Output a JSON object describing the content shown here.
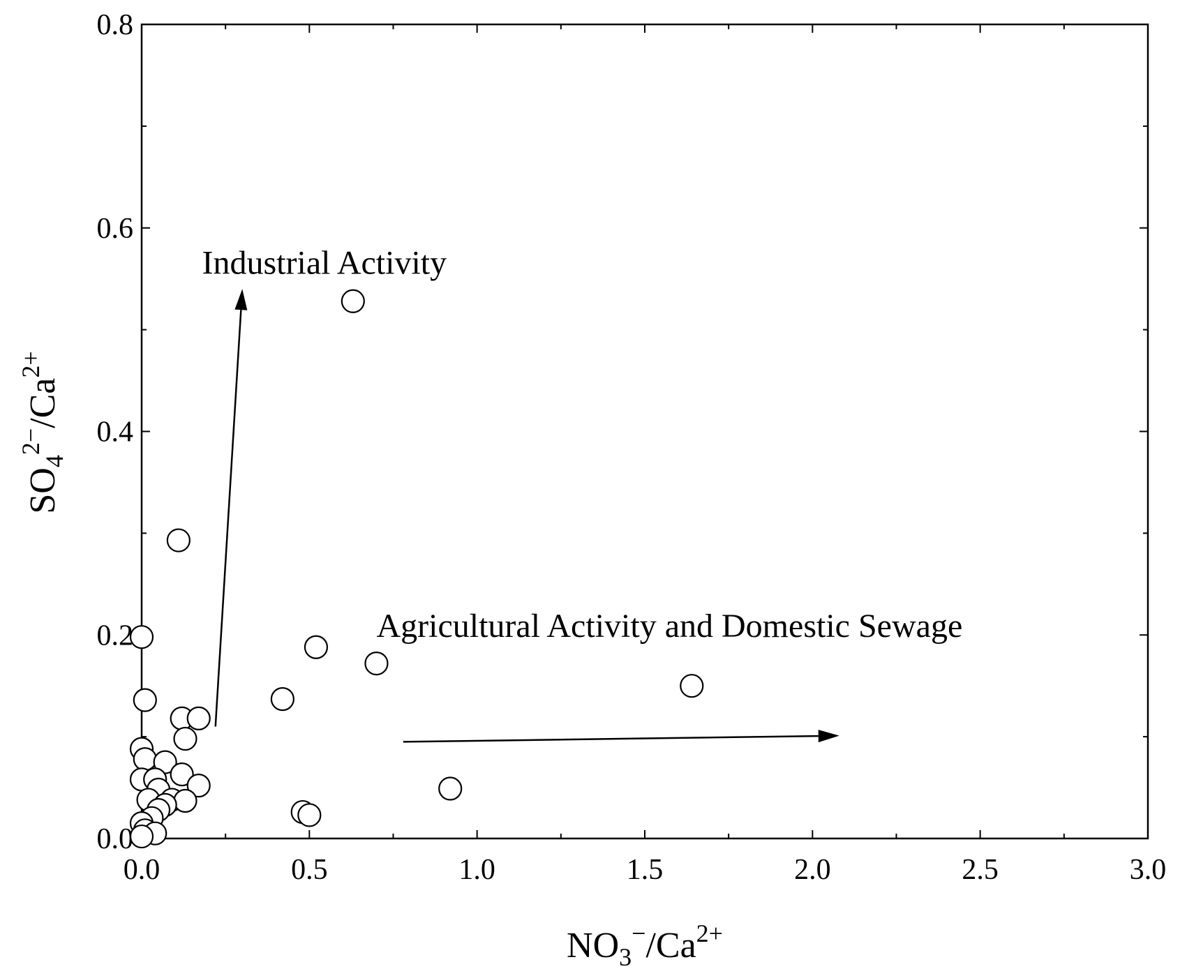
{
  "chart_data": {
    "type": "scatter",
    "title": "",
    "xlabel": {
      "base": "NO",
      "sub": "3",
      "sup": "−",
      "tail": "/Ca",
      "tail_sup": "2+"
    },
    "ylabel": {
      "base": "SO",
      "sub": "4",
      "sup": "2−",
      "tail": "/Ca",
      "tail_sup": "2+"
    },
    "xlim": [
      0,
      3
    ],
    "ylim": [
      0,
      0.8
    ],
    "xticks": [
      "0.0",
      "0.5",
      "1.0",
      "1.5",
      "2.0",
      "2.5",
      "3.0"
    ],
    "yticks": [
      "0.0",
      "0.2",
      "0.4",
      "0.6",
      "0.8"
    ],
    "grid": false,
    "marker": "open-circle",
    "points": [
      [
        0.63,
        0.528
      ],
      [
        0.11,
        0.293
      ],
      [
        0.0,
        0.198
      ],
      [
        0.52,
        0.188
      ],
      [
        0.7,
        0.172
      ],
      [
        1.64,
        0.15
      ],
      [
        0.42,
        0.137
      ],
      [
        0.01,
        0.136
      ],
      [
        0.12,
        0.118
      ],
      [
        0.17,
        0.118
      ],
      [
        0.13,
        0.098
      ],
      [
        0.0,
        0.088
      ],
      [
        0.01,
        0.078
      ],
      [
        0.07,
        0.075
      ],
      [
        0.12,
        0.063
      ],
      [
        0.0,
        0.058
      ],
      [
        0.04,
        0.058
      ],
      [
        0.17,
        0.052
      ],
      [
        0.05,
        0.048
      ],
      [
        0.92,
        0.049
      ],
      [
        0.02,
        0.038
      ],
      [
        0.09,
        0.038
      ],
      [
        0.13,
        0.037
      ],
      [
        0.07,
        0.033
      ],
      [
        0.05,
        0.028
      ],
      [
        0.48,
        0.026
      ],
      [
        0.5,
        0.023
      ],
      [
        0.03,
        0.02
      ],
      [
        0.0,
        0.015
      ],
      [
        0.01,
        0.008
      ],
      [
        0.04,
        0.005
      ],
      [
        0.0,
        0.002
      ]
    ],
    "annotations": [
      {
        "text": "Industrial Activity",
        "arrow_from": [
          0.22,
          0.11
        ],
        "arrow_to": [
          0.3,
          0.54
        ],
        "text_at": [
          0.18,
          0.555
        ]
      },
      {
        "text": "Agricultural Activity and Domestic Sewage",
        "arrow_from": [
          0.78,
          0.095
        ],
        "arrow_to": [
          2.08,
          0.101
        ],
        "text_at": [
          0.7,
          0.198
        ]
      }
    ]
  }
}
